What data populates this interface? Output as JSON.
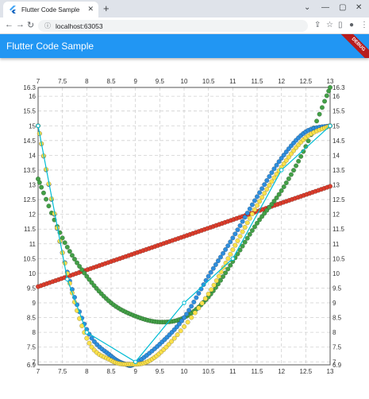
{
  "browser": {
    "tab_title": "Flutter Code Sample",
    "tab_close": "✕",
    "new_tab": "+",
    "url": "localhost:63053",
    "icons": [
      "back-icon",
      "forward-icon",
      "reload-icon",
      "info-icon",
      "share-icon",
      "star-icon",
      "sidebar-icon",
      "profile-icon",
      "menu-icon"
    ]
  },
  "app": {
    "title": "Flutter Code Sample",
    "debug_banner": "DEBUG",
    "bar_color": "#2196f3"
  },
  "chart_data": {
    "type": "line",
    "xlim": [
      7,
      13
    ],
    "ylim": [
      6.9,
      16.3
    ],
    "x_ticks": [
      "7",
      "7.5",
      "8",
      "8.5",
      "9",
      "9.5",
      "10",
      "10.5",
      "11",
      "11.5",
      "12",
      "12.5",
      "13"
    ],
    "y_ticks": [
      "6.9",
      "7",
      "7.5",
      "8",
      "8.5",
      "9",
      "9.5",
      "10",
      "10.5",
      "11",
      "11.5",
      "12",
      "12.5",
      "13",
      "13.5",
      "14",
      "14.5",
      "15",
      "15.5",
      "16",
      "16.3"
    ],
    "grid": true,
    "series": [
      {
        "color": "#dc3d2c",
        "kind": "dense-dots",
        "values": [
          [
            7,
            9.55
          ],
          [
            13,
            12.95
          ]
        ]
      },
      {
        "color": "#43a047",
        "kind": "dense-dots",
        "values": [
          [
            7,
            13.2
          ],
          [
            7.5,
            11.2
          ],
          [
            8,
            9.9
          ],
          [
            8.5,
            9.0
          ],
          [
            9,
            8.55
          ],
          [
            9.5,
            8.35
          ],
          [
            10,
            8.5
          ],
          [
            10.5,
            9.2
          ],
          [
            11,
            10.4
          ],
          [
            11.5,
            11.7
          ],
          [
            12,
            12.8
          ],
          [
            12.5,
            14.3
          ],
          [
            13,
            16.3
          ]
        ]
      },
      {
        "color": "#2e8ede",
        "kind": "dense-dots",
        "values": [
          [
            7,
            15.0
          ],
          [
            7.5,
            10.7
          ],
          [
            8,
            8.1
          ],
          [
            8.5,
            7.2
          ],
          [
            8.8,
            6.92
          ],
          [
            9,
            6.95
          ],
          [
            9.5,
            7.6
          ],
          [
            10,
            8.5
          ],
          [
            10.5,
            9.9
          ],
          [
            11,
            11.2
          ],
          [
            11.5,
            12.6
          ],
          [
            12,
            13.9
          ],
          [
            12.5,
            14.8
          ],
          [
            13,
            15.0
          ]
        ]
      },
      {
        "color": "#fbe14b",
        "kind": "dense-dots",
        "values": [
          [
            7,
            15.0
          ],
          [
            7.5,
            10.7
          ],
          [
            8,
            7.8
          ],
          [
            8.5,
            7.05
          ],
          [
            8.9,
            6.92
          ],
          [
            9.3,
            7.05
          ],
          [
            9.8,
            7.8
          ],
          [
            10.5,
            9.3
          ],
          [
            11,
            10.8
          ],
          [
            11.5,
            12.3
          ],
          [
            12,
            13.6
          ],
          [
            12.5,
            14.6
          ],
          [
            13,
            15.0
          ]
        ]
      },
      {
        "color": "#00bcd4",
        "kind": "line-with-markers",
        "values": [
          [
            7,
            15.0
          ],
          [
            7.6,
            9.8
          ],
          [
            8,
            8.0
          ],
          [
            9,
            7.0
          ],
          [
            10,
            9.0
          ],
          [
            11,
            10.5
          ],
          [
            12,
            13.5
          ],
          [
            13,
            15.0
          ]
        ]
      }
    ]
  }
}
